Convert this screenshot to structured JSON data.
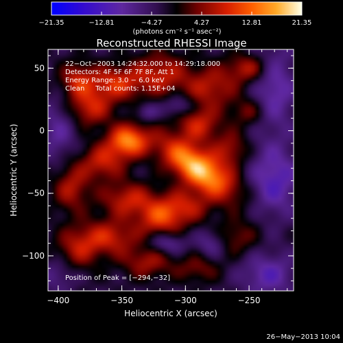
{
  "chart_data": {
    "type": "heatmap",
    "title": "Reconstructed RHESSI Image",
    "xlabel": "Heliocentric X (arcsec)",
    "ylabel": "Heliocentric Y (arcsec)",
    "xlim": [
      -408,
      -215
    ],
    "ylim": [
      -128,
      65
    ],
    "x_ticks": [
      -400,
      -350,
      -300,
      -250
    ],
    "y_ticks": [
      50,
      0,
      -50,
      -100
    ],
    "x_tick_labels": [
      "−400",
      "−350",
      "−300",
      "−250"
    ],
    "y_tick_labels": [
      "50",
      "0",
      "−50",
      "−100"
    ],
    "colorbar": {
      "ticks": [
        -21.35,
        -12.81,
        -4.27,
        4.27,
        12.81,
        21.35
      ],
      "tick_labels": [
        "−21.35",
        "−12.81",
        "−4.27",
        "4.27",
        "12.81",
        "21.35"
      ],
      "range": [
        -21.35,
        21.35
      ],
      "units_label": "(photons cm⁻² s⁻¹ asec⁻²)"
    },
    "annotations": [
      "22−Oct−2003 14:24:32.000 to 14:29:18.000",
      "Detectors: 4F 5F 6F 7F 8F, Att 1",
      "Energy Range: 3.0 − 6.0 keV",
      "Clean     Total counts: 1.15E+04"
    ],
    "peak_label": "Position of Peak = [−294,−32]",
    "peak": [
      -294,
      -32
    ],
    "sources": [
      {
        "x": -290,
        "y": -30,
        "amp": 21.35,
        "sx": 24,
        "sy": 10,
        "rot": -35
      },
      {
        "x": -345,
        "y": -8,
        "amp": 17,
        "sx": 11,
        "sy": 9,
        "rot": 0
      },
      {
        "x": -375,
        "y": 18,
        "amp": 10,
        "sx": 12,
        "sy": 10,
        "rot": 0
      },
      {
        "x": -385,
        "y": 40,
        "amp": 10,
        "sx": 10,
        "sy": 10,
        "rot": 0
      },
      {
        "x": -355,
        "y": 38,
        "amp": 11,
        "sx": 14,
        "sy": 10,
        "rot": 0
      },
      {
        "x": -320,
        "y": 45,
        "amp": 10,
        "sx": 15,
        "sy": 12,
        "rot": 0
      },
      {
        "x": -280,
        "y": 35,
        "amp": 9,
        "sx": 15,
        "sy": 12,
        "rot": 0
      },
      {
        "x": -250,
        "y": 50,
        "amp": 9,
        "sx": 12,
        "sy": 8,
        "rot": 0
      },
      {
        "x": -290,
        "y": 5,
        "amp": 10,
        "sx": 12,
        "sy": 10,
        "rot": 0
      },
      {
        "x": -365,
        "y": -25,
        "amp": 10,
        "sx": 12,
        "sy": 10,
        "rot": 0
      },
      {
        "x": -390,
        "y": -45,
        "amp": 9,
        "sx": 10,
        "sy": 14,
        "rot": 0
      },
      {
        "x": -345,
        "y": -55,
        "amp": 10,
        "sx": 15,
        "sy": 10,
        "rot": 0
      },
      {
        "x": -320,
        "y": -70,
        "amp": 11,
        "sx": 12,
        "sy": 10,
        "rot": 0
      },
      {
        "x": -300,
        "y": -60,
        "amp": 9,
        "sx": 14,
        "sy": 10,
        "rot": 0
      },
      {
        "x": -360,
        "y": -85,
        "amp": 10,
        "sx": 16,
        "sy": 10,
        "rot": 0
      },
      {
        "x": -385,
        "y": -95,
        "amp": 8,
        "sx": 12,
        "sy": 12,
        "rot": 0
      },
      {
        "x": -330,
        "y": -105,
        "amp": 8,
        "sx": 14,
        "sy": 9,
        "rot": 0
      },
      {
        "x": -290,
        "y": -110,
        "amp": 6,
        "sx": 12,
        "sy": 8,
        "rot": 0
      },
      {
        "x": -260,
        "y": -85,
        "amp": 6,
        "sx": 12,
        "sy": 10,
        "rot": 0
      },
      {
        "x": -265,
        "y": -15,
        "amp": 8,
        "sx": 10,
        "sy": 10,
        "rot": 0
      },
      {
        "x": -250,
        "y": 15,
        "amp": 6,
        "sx": 10,
        "sy": 8,
        "rot": 0
      },
      {
        "x": -230,
        "y": 35,
        "amp": -8,
        "sx": 12,
        "sy": 25,
        "rot": 0
      },
      {
        "x": -230,
        "y": -40,
        "amp": -9,
        "sx": 14,
        "sy": 20,
        "rot": 0
      },
      {
        "x": -235,
        "y": -115,
        "amp": -8,
        "sx": 15,
        "sy": 12,
        "rot": 0
      },
      {
        "x": -400,
        "y": 0,
        "amp": -6,
        "sx": 10,
        "sy": 20,
        "rot": 0
      },
      {
        "x": -400,
        "y": -115,
        "amp": -5,
        "sx": 10,
        "sy": 10,
        "rot": 0
      },
      {
        "x": -305,
        "y": 20,
        "amp": -7,
        "sx": 8,
        "sy": 6,
        "rot": 0
      },
      {
        "x": -330,
        "y": 15,
        "amp": -6,
        "sx": 6,
        "sy": 5,
        "rot": 0
      },
      {
        "x": -315,
        "y": -90,
        "amp": -7,
        "sx": 10,
        "sy": 6,
        "rot": 0
      },
      {
        "x": -280,
        "y": -90,
        "amp": -6,
        "sx": 8,
        "sy": 8,
        "rot": 0
      }
    ],
    "grid": false
  },
  "footer": {
    "date": "26−May−2013 10:04"
  }
}
